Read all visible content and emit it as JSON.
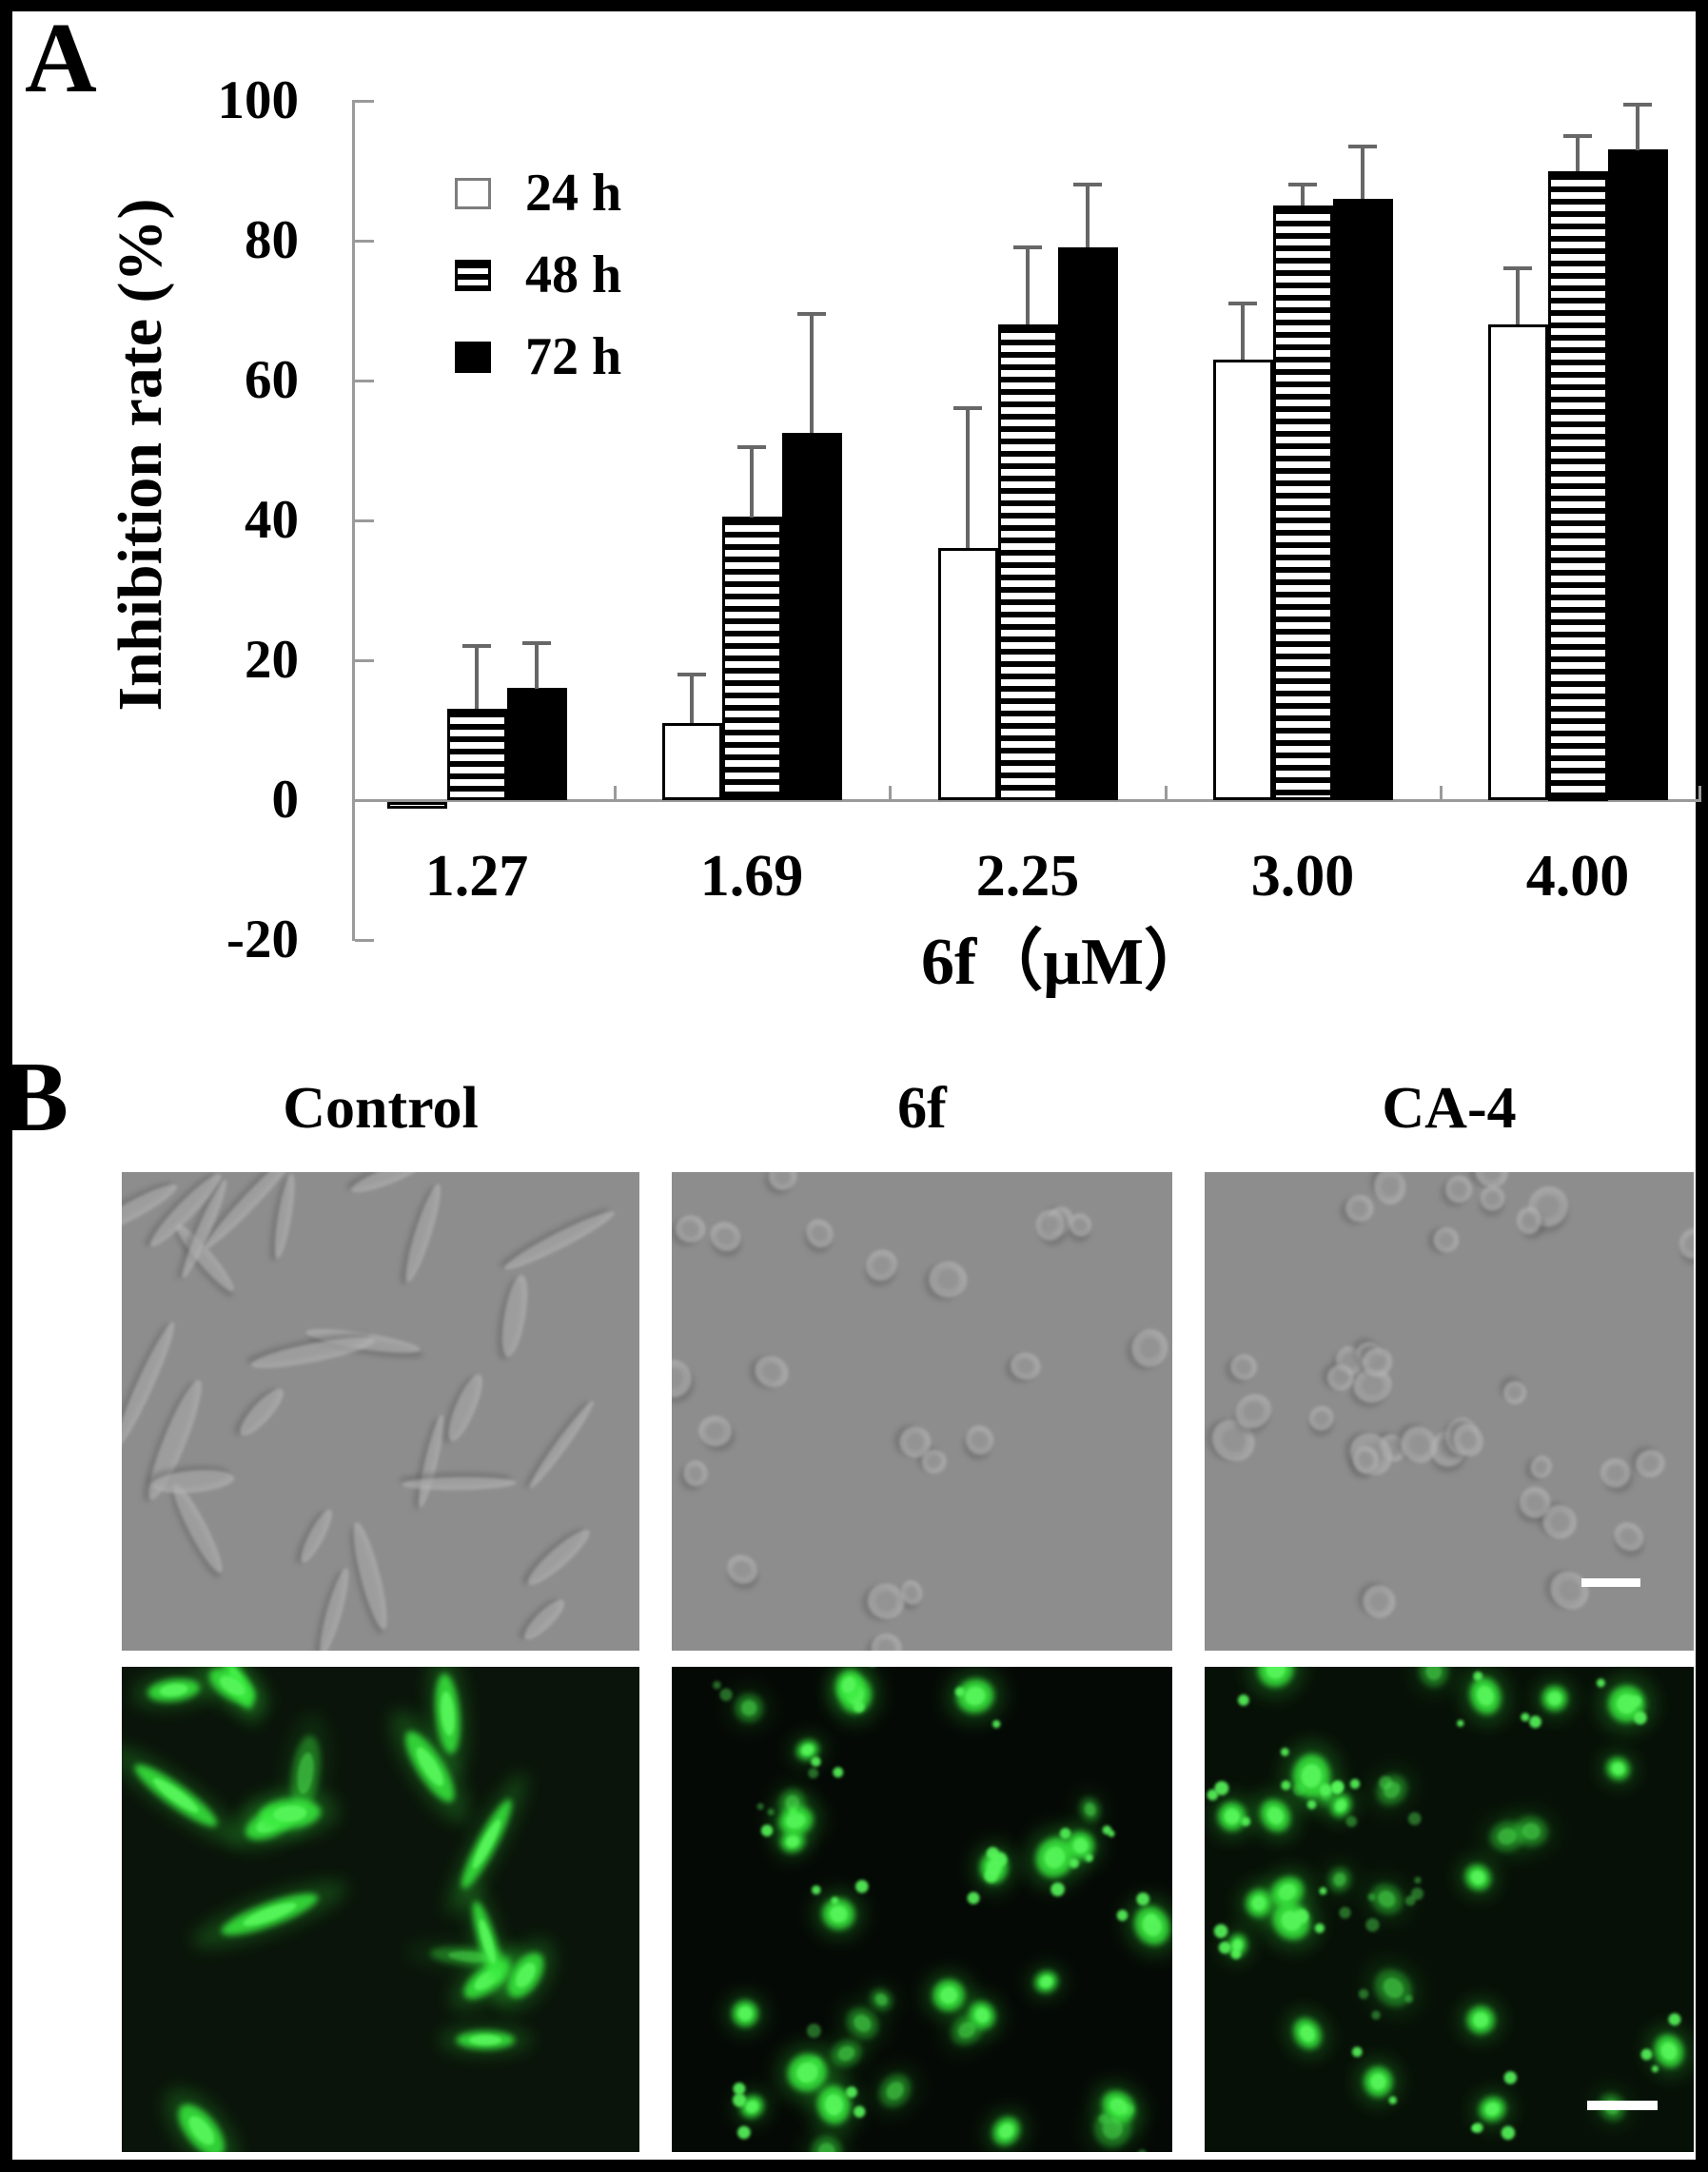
{
  "panel_a": {
    "label": "A"
  },
  "panel_b": {
    "label": "B",
    "columns": [
      "Control",
      "6f",
      "CA-4"
    ],
    "imaging_rows": [
      {
        "name": "phase-contrast-row",
        "background": "#8d8d8d",
        "cell_tone_light": "#bcbcbc",
        "cell_tone_dark": "#565656",
        "panels": [
          {
            "treatment": "Control",
            "morphology": "spindle",
            "cell_count": 26,
            "seed": 11
          },
          {
            "treatment": "6f",
            "morphology": "round",
            "cell_count": 22,
            "seed": 22
          },
          {
            "treatment": "CA-4",
            "morphology": "round-clustered",
            "cell_count": 34,
            "seed": 33
          }
        ],
        "scale_bar_in_last_panel": true
      },
      {
        "name": "fluorescence-row",
        "cell_color": "#38e93c",
        "cell_core_color": "#56f55a",
        "panels": [
          {
            "treatment": "Control",
            "morphology": "spindle",
            "cell_count": 17,
            "seed": 47,
            "background": "#0a140a"
          },
          {
            "treatment": "6f",
            "morphology": "round-fragmented",
            "cell_count": 30,
            "seed": 55,
            "background": "#050905"
          },
          {
            "treatment": "CA-4",
            "morphology": "round-fragmented",
            "cell_count": 28,
            "seed": 66,
            "background": "#071007"
          }
        ],
        "scale_bar_in_last_panel": true
      }
    ],
    "scale_bar_color": "#ffffff"
  },
  "chart_data": {
    "type": "bar",
    "title": "",
    "xlabel": "6f（μM）",
    "ylabel": "Inhibition rate (%)",
    "categories": [
      "1.27",
      "1.69",
      "2.25",
      "3.00",
      "4.00"
    ],
    "series": [
      {
        "name": "24 h",
        "pattern": "open",
        "values": [
          -1,
          11,
          36,
          63,
          68
        ],
        "errors": [
          0,
          7,
          20,
          8,
          8
        ]
      },
      {
        "name": "48 h",
        "pattern": "striped",
        "values": [
          13,
          40.5,
          68,
          85,
          90
        ],
        "errors": [
          9,
          10,
          11,
          3,
          5
        ]
      },
      {
        "name": "72 h",
        "pattern": "solid",
        "values": [
          16,
          52.5,
          79,
          86,
          93
        ],
        "errors": [
          6.5,
          17,
          9,
          7.5,
          6.5
        ]
      }
    ],
    "ylim": [
      -20,
      100
    ],
    "yticks": [
      100,
      80,
      60,
      40,
      20,
      0,
      -20
    ],
    "grid": false,
    "legend_position": "top-left-inside",
    "error_bars": "upper-only",
    "axis_color": "#9a9a9a",
    "error_bar_color": "#676767"
  }
}
